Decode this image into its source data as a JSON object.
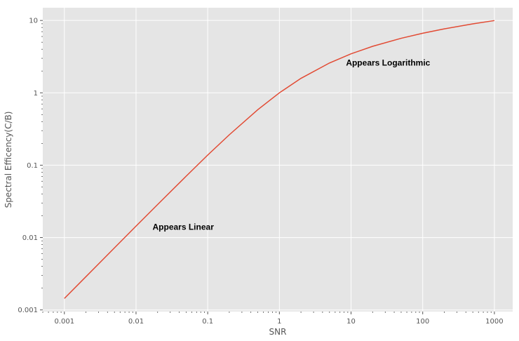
{
  "chart_data": {
    "type": "line",
    "title": "",
    "xlabel": "SNR",
    "ylabel": "Spectral Efficency(C/B)",
    "xscale": "log",
    "yscale": "log",
    "xlim": [
      0.0005,
      1800
    ],
    "ylim": [
      0.00095,
      15
    ],
    "grid": true,
    "legend": "none",
    "x_ticks": [
      {
        "value": 0.001,
        "label": "0.001"
      },
      {
        "value": 0.01,
        "label": "0.01"
      },
      {
        "value": 0.1,
        "label": "0.1"
      },
      {
        "value": 1,
        "label": "1"
      },
      {
        "value": 10,
        "label": "10"
      },
      {
        "value": 100,
        "label": "100"
      },
      {
        "value": 1000,
        "label": "1000"
      }
    ],
    "y_ticks": [
      {
        "value": 0.001,
        "label": "0.001"
      },
      {
        "value": 0.01,
        "label": "0.01"
      },
      {
        "value": 0.1,
        "label": "0.1"
      },
      {
        "value": 1,
        "label": "1"
      },
      {
        "value": 10,
        "label": "10"
      }
    ],
    "series": [
      {
        "color": "#e24a33",
        "x": [
          0.001,
          0.002,
          0.005,
          0.01,
          0.02,
          0.05,
          0.1,
          0.2,
          0.5,
          1,
          2,
          5,
          10,
          20,
          50,
          100,
          200,
          500,
          1000
        ],
        "y": [
          0.00144,
          0.00288,
          0.0072,
          0.0144,
          0.0286,
          0.0704,
          0.138,
          0.263,
          0.585,
          1.0,
          1.585,
          2.585,
          3.459,
          4.392,
          5.672,
          6.658,
          7.651,
          8.969,
          9.967
        ]
      }
    ],
    "annotations": [
      {
        "text": "Appears Linear",
        "x": 0.017,
        "y": 0.014
      },
      {
        "text": "Appears Logarithmic",
        "x": 8.5,
        "y": 2.6
      }
    ]
  },
  "colors": {
    "plot_background": "#e5e5e5",
    "grid": "#ffffff",
    "line": "#e24a33",
    "tick_text": "#555555"
  }
}
